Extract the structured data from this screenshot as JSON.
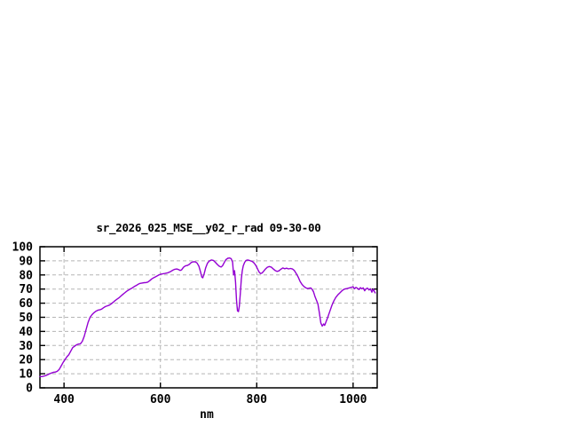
{
  "page": {
    "background": "#ffffff"
  },
  "colors": {
    "line": "#9400d3",
    "grid": "#b5b5b5",
    "border": "#000000",
    "text": "#000000"
  },
  "chart_data": {
    "type": "line",
    "title": "sr_2026_025_MSE__y02_r_rad 09-30-00",
    "xlabel": "nm",
    "ylabel": "",
    "xlim": [
      350,
      1050
    ],
    "ylim": [
      0,
      100
    ],
    "x_ticks": [
      400,
      600,
      800,
      1000
    ],
    "y_ticks": [
      0,
      10,
      20,
      30,
      40,
      50,
      60,
      70,
      80,
      90,
      100
    ],
    "grid": true,
    "legend_position": "none",
    "series": [
      {
        "name": "sr_2026_025_MSE__y02_r_rad",
        "color": "#9400d3",
        "points": [
          [
            350,
            8
          ],
          [
            354,
            8
          ],
          [
            358,
            8.3
          ],
          [
            362,
            8.7
          ],
          [
            366,
            9.3
          ],
          [
            370,
            10
          ],
          [
            374,
            10.5
          ],
          [
            378,
            11
          ],
          [
            382,
            11.2
          ],
          [
            386,
            11.7
          ],
          [
            390,
            13
          ],
          [
            394,
            15.5
          ],
          [
            398,
            18
          ],
          [
            402,
            20
          ],
          [
            406,
            22
          ],
          [
            410,
            23.5
          ],
          [
            414,
            26
          ],
          [
            418,
            28.5
          ],
          [
            422,
            29.5
          ],
          [
            426,
            30.5
          ],
          [
            430,
            31
          ],
          [
            434,
            31.2
          ],
          [
            438,
            33
          ],
          [
            442,
            36.5
          ],
          [
            446,
            41.5
          ],
          [
            450,
            46.5
          ],
          [
            454,
            50
          ],
          [
            458,
            51.8
          ],
          [
            462,
            53.2
          ],
          [
            466,
            54.3
          ],
          [
            470,
            55
          ],
          [
            474,
            55.3
          ],
          [
            478,
            55.8
          ],
          [
            482,
            56.8
          ],
          [
            486,
            57.6
          ],
          [
            490,
            58.1
          ],
          [
            494,
            58.6
          ],
          [
            498,
            59.5
          ],
          [
            502,
            60.6
          ],
          [
            506,
            61.8
          ],
          [
            510,
            62.8
          ],
          [
            514,
            63.8
          ],
          [
            518,
            65
          ],
          [
            522,
            66.2
          ],
          [
            526,
            67.3
          ],
          [
            530,
            68.4
          ],
          [
            534,
            69.3
          ],
          [
            538,
            70.1
          ],
          [
            542,
            70.9
          ],
          [
            546,
            71.8
          ],
          [
            550,
            72.6
          ],
          [
            554,
            73.4
          ],
          [
            558,
            74
          ],
          [
            562,
            74.3
          ],
          [
            566,
            74.5
          ],
          [
            570,
            74.6
          ],
          [
            574,
            75
          ],
          [
            578,
            76
          ],
          [
            582,
            77.2
          ],
          [
            586,
            78
          ],
          [
            590,
            78.7
          ],
          [
            594,
            79.5
          ],
          [
            598,
            80.2
          ],
          [
            602,
            80.6
          ],
          [
            606,
            80.9
          ],
          [
            610,
            81.1
          ],
          [
            614,
            81.4
          ],
          [
            618,
            81.9
          ],
          [
            622,
            82.6
          ],
          [
            626,
            83.4
          ],
          [
            630,
            84
          ],
          [
            634,
            84.2
          ],
          [
            638,
            83.8
          ],
          [
            641,
            83.2
          ],
          [
            644,
            83.6
          ],
          [
            648,
            85.5
          ],
          [
            652,
            86.4
          ],
          [
            656,
            86.7
          ],
          [
            660,
            87.5
          ],
          [
            664,
            88.8
          ],
          [
            668,
            89.3
          ],
          [
            672,
            89.4
          ],
          [
            676,
            88.5
          ],
          [
            680,
            86.2
          ],
          [
            683,
            82.5
          ],
          [
            686,
            78.5
          ],
          [
            688,
            78
          ],
          [
            691,
            81
          ],
          [
            694,
            85
          ],
          [
            698,
            88.5
          ],
          [
            702,
            90
          ],
          [
            706,
            90.6
          ],
          [
            710,
            90.3
          ],
          [
            714,
            89
          ],
          [
            718,
            87.5
          ],
          [
            722,
            86.2
          ],
          [
            726,
            85.6
          ],
          [
            729,
            86.5
          ],
          [
            732,
            88.5
          ],
          [
            736,
            90.8
          ],
          [
            740,
            91.8
          ],
          [
            744,
            92
          ],
          [
            747,
            91.5
          ],
          [
            750,
            89
          ],
          [
            752,
            80
          ],
          [
            754,
            83
          ],
          [
            756,
            75
          ],
          [
            758,
            62
          ],
          [
            760,
            54.5
          ],
          [
            762,
            54
          ],
          [
            764,
            58
          ],
          [
            766,
            67
          ],
          [
            768,
            77
          ],
          [
            770,
            83
          ],
          [
            772,
            86.5
          ],
          [
            775,
            89
          ],
          [
            778,
            90.3
          ],
          [
            781,
            90.6
          ],
          [
            784,
            90.4
          ],
          [
            787,
            90
          ],
          [
            790,
            89.6
          ],
          [
            793,
            89
          ],
          [
            796,
            87.8
          ],
          [
            799,
            86.3
          ],
          [
            802,
            84
          ],
          [
            805,
            82
          ],
          [
            808,
            81
          ],
          [
            811,
            81.4
          ],
          [
            814,
            82.5
          ],
          [
            818,
            84.2
          ],
          [
            822,
            85.5
          ],
          [
            826,
            86
          ],
          [
            830,
            85.6
          ],
          [
            834,
            84.4
          ],
          [
            838,
            83.2
          ],
          [
            842,
            82.5
          ],
          [
            846,
            82.9
          ],
          [
            850,
            84
          ],
          [
            854,
            85
          ],
          [
            858,
            84.4
          ],
          [
            862,
            84.8
          ],
          [
            866,
            84.3
          ],
          [
            870,
            84.6
          ],
          [
            874,
            84.2
          ],
          [
            878,
            83.2
          ],
          [
            882,
            81
          ],
          [
            886,
            78.5
          ],
          [
            890,
            75.5
          ],
          [
            894,
            73.3
          ],
          [
            898,
            71.8
          ],
          [
            902,
            70.8
          ],
          [
            906,
            70.3
          ],
          [
            909,
            70.6
          ],
          [
            912,
            70.8
          ],
          [
            915,
            69.8
          ],
          [
            918,
            68
          ],
          [
            921,
            64.5
          ],
          [
            924,
            62
          ],
          [
            927,
            59.5
          ],
          [
            930,
            53
          ],
          [
            933,
            46
          ],
          [
            936,
            43.8
          ],
          [
            939,
            45.3
          ],
          [
            941,
            44.3
          ],
          [
            944,
            47
          ],
          [
            948,
            50.5
          ],
          [
            952,
            54.5
          ],
          [
            956,
            58.5
          ],
          [
            960,
            61.5
          ],
          [
            964,
            64
          ],
          [
            968,
            65.8
          ],
          [
            972,
            67.2
          ],
          [
            976,
            68.5
          ],
          [
            980,
            69.6
          ],
          [
            984,
            70.2
          ],
          [
            988,
            70.4
          ],
          [
            992,
            70.8
          ],
          [
            996,
            71.2
          ],
          [
            1000,
            71.6
          ],
          [
            1003,
            70.2
          ],
          [
            1006,
            71.2
          ],
          [
            1009,
            70.6
          ],
          [
            1012,
            69.6
          ],
          [
            1015,
            71
          ],
          [
            1018,
            70.2
          ],
          [
            1021,
            70.8
          ],
          [
            1024,
            68.8
          ],
          [
            1027,
            70.2
          ],
          [
            1030,
            70.6
          ],
          [
            1033,
            69.4
          ],
          [
            1036,
            70.2
          ],
          [
            1039,
            67.8
          ],
          [
            1042,
            70
          ],
          [
            1044,
            68.3
          ],
          [
            1046,
            67.3
          ]
        ]
      }
    ]
  }
}
